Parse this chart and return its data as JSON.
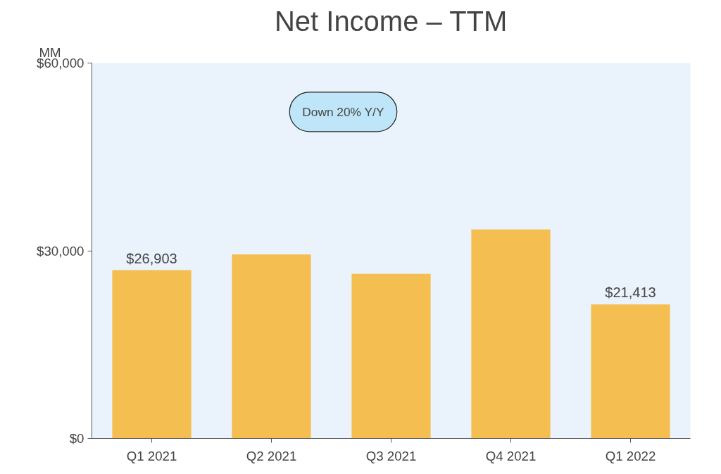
{
  "chart_data": {
    "type": "bar",
    "title": "Net Income – TTM",
    "ylabel": "MM",
    "categories": [
      "Q1 2021",
      "Q2 2021",
      "Q3 2021",
      "Q4 2021",
      "Q1 2022"
    ],
    "values": [
      26903,
      29400,
      26300,
      33400,
      21413
    ],
    "value_labels": [
      "$26,903",
      null,
      null,
      null,
      "$21,413"
    ],
    "color": "#f5be50",
    "ylim": [
      0,
      60000
    ],
    "yticks": [
      {
        "value": 0,
        "label": "$0"
      },
      {
        "value": 30000,
        "label": "$30,000"
      },
      {
        "value": 60000,
        "label": "$60,000"
      }
    ],
    "annotations": [
      "Down 20% Y/Y"
    ],
    "grid": false
  }
}
